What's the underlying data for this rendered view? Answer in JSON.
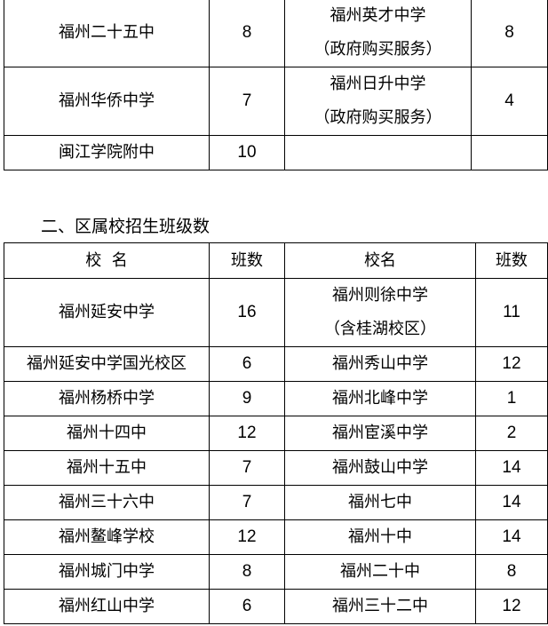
{
  "table1": {
    "rows": [
      {
        "left_name": "福州二十五中",
        "left_count": "8",
        "right_name": [
          "福州英才中学",
          "（政府购买服务）"
        ],
        "right_count": "8"
      },
      {
        "left_name": "福州华侨中学",
        "left_count": "7",
        "right_name": [
          "福州日升中学",
          "（政府购买服务）"
        ],
        "right_count": "4"
      },
      {
        "left_name": "闽江学院附中",
        "left_count": "10",
        "right_name": [
          ""
        ],
        "right_count": ""
      }
    ]
  },
  "section2": {
    "heading": "二、区属校招生班级数",
    "headers": [
      "校  名",
      "班数",
      "校名",
      "班数"
    ],
    "rows": [
      {
        "left_name": "福州延安中学",
        "left_count": "16",
        "right_name": [
          "福州则徐中学",
          "（含桂湖校区）"
        ],
        "right_count": "11"
      },
      {
        "left_name": "福州延安中学国光校区",
        "left_count": "6",
        "right_name": [
          "福州秀山中学"
        ],
        "right_count": "12"
      },
      {
        "left_name": "福州杨桥中学",
        "left_count": "9",
        "right_name": [
          "福州北峰中学"
        ],
        "right_count": "1"
      },
      {
        "left_name": "福州十四中",
        "left_count": "12",
        "right_name": [
          "福州宦溪中学"
        ],
        "right_count": "2"
      },
      {
        "left_name": "福州十五中",
        "left_count": "7",
        "right_name": [
          "福州鼓山中学"
        ],
        "right_count": "14"
      },
      {
        "left_name": "福州三十六中",
        "left_count": "7",
        "right_name": [
          "福州七中"
        ],
        "right_count": "14"
      },
      {
        "left_name": "福州鳌峰学校",
        "left_count": "12",
        "right_name": [
          "福州十中"
        ],
        "right_count": "14"
      },
      {
        "left_name": "福州城门中学",
        "left_count": "8",
        "right_name": [
          "福州二十中"
        ],
        "right_count": "8"
      },
      {
        "left_name": "福州红山中学",
        "left_count": "6",
        "right_name": [
          "福州三十二中"
        ],
        "right_count": "12"
      }
    ]
  }
}
